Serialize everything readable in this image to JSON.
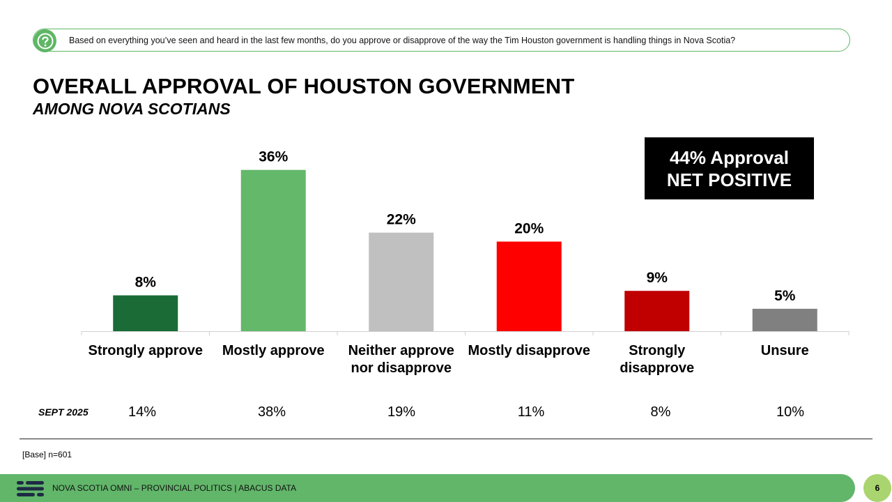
{
  "question": {
    "text": "Based on everything you’ve seen and heard in the last few months, do you approve or disapprove of the way the Tim Houston government is handling things in Nova Scotia?"
  },
  "colors": {
    "accent_green": "#5fb665",
    "footer_green": "#62b66a",
    "page_badge": "#a9d46f"
  },
  "callout": {
    "line1": "44% Approval",
    "line2": "NET POSITIVE"
  },
  "comparison": {
    "label": "SEPT 2025",
    "values": [
      "14%",
      "38%",
      "19%",
      "11%",
      "8%",
      "10%"
    ]
  },
  "chart_data": {
    "type": "bar",
    "title": "OVERALL APPROVAL OF HOUSTON GOVERNMENT",
    "subtitle": "AMONG NOVA SCOTIANS",
    "categories": [
      [
        "Strongly approve"
      ],
      [
        "Mostly approve"
      ],
      [
        "Neither approve",
        "nor disapprove"
      ],
      [
        "Mostly disapprove"
      ],
      [
        "Strongly",
        "disapprove"
      ],
      [
        "Unsure"
      ]
    ],
    "values": [
      8,
      36,
      22,
      20,
      9,
      5
    ],
    "data_labels": [
      "8%",
      "36%",
      "22%",
      "20%",
      "9%",
      "5%"
    ],
    "bar_colors": [
      "#1a6b36",
      "#63b869",
      "#c0c0c0",
      "#ff0000",
      "#c00000",
      "#808080"
    ],
    "ylim": [
      0,
      40
    ],
    "grid": false,
    "legend": "none"
  },
  "footer": {
    "text": "NOVA SCOTIA OMNI – PROVINCIAL POLITICS  |  ABACUS DATA",
    "page": "6",
    "base": "[Base] n=601"
  }
}
